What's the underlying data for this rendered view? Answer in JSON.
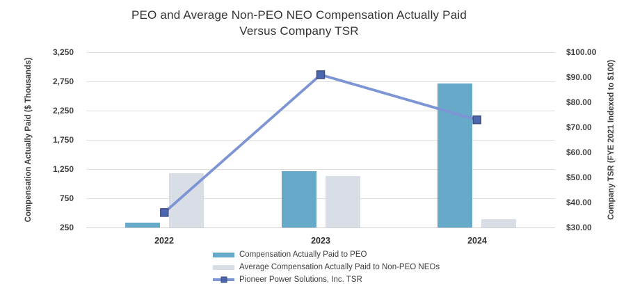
{
  "chart_data": {
    "type": "bar+line combo",
    "title": "PEO and Average Non-PEO NEO Compensation Actually Paid Versus Company TSR",
    "title_lines": [
      "PEO and Average Non-PEO NEO Compensation Actually Paid",
      "Versus Company TSR"
    ],
    "categories": [
      "2022",
      "2023",
      "2024"
    ],
    "series": [
      {
        "name": "Compensation Actually Paid to PEO",
        "kind": "bar",
        "axis": "left",
        "color": "#67a9c9",
        "values": [
          330,
          1220,
          2720
        ]
      },
      {
        "name": "Average Compensation Actually Paid to Non-PEO NEOs",
        "kind": "bar",
        "axis": "left",
        "color": "#d9dde6",
        "values": [
          1180,
          1130,
          390
        ]
      },
      {
        "name": "Pioneer Power Solutions, Inc. TSR",
        "kind": "line",
        "axis": "right",
        "color": "#7d95d5",
        "marker_color": "#4c66b0",
        "marker_border_color": "#3e4b7e",
        "values": [
          36,
          91,
          73
        ]
      }
    ],
    "left_axis": {
      "title": "Compensation Actually Paid ($ Thousands)",
      "min": 250,
      "max": 3250,
      "ticks": [
        250,
        750,
        1250,
        1750,
        2250,
        2750,
        3250
      ],
      "tick_labels": [
        "250",
        "750",
        "1,250",
        "1,750",
        "2,250",
        "2,750",
        "3,250"
      ]
    },
    "right_axis": {
      "title": "Company TSR (FYE 2021 Indexed to $100)",
      "min": 30,
      "max": 100,
      "ticks": [
        30,
        40,
        50,
        60,
        70,
        80,
        90,
        100
      ],
      "tick_labels": [
        "$30.00",
        "$40.00",
        "$50.00",
        "$60.00",
        "$70.00",
        "$80.00",
        "$90.00",
        "$100.00"
      ]
    },
    "grid": true,
    "legend_position": "bottom",
    "colors": {
      "gridline": "#dedede",
      "baseline": "#cfcfcf",
      "tick_text": "#3f3f3f",
      "title_text": "#333333"
    }
  }
}
